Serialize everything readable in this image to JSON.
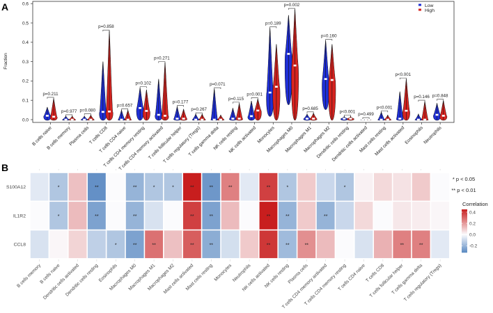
{
  "panel_a_label": "A",
  "panel_b_label": "B",
  "chart_data": [
    {
      "type": "violin",
      "ylabel": "Fraction",
      "ylim": [
        0,
        0.6
      ],
      "yticks": [
        "0.0",
        "0.1",
        "0.2",
        "0.3",
        "0.4",
        "0.5",
        "0.6"
      ],
      "legend": {
        "placement": "top-right",
        "entries": [
          {
            "name": "Low",
            "color": "#1f2fd6"
          },
          {
            "name": "High",
            "color": "#d6231f"
          }
        ]
      },
      "groups": [
        {
          "label": "B cells naive",
          "p": "p=0.211",
          "low": {
            "min": 0,
            "median": 0.02,
            "max": 0.065
          },
          "high": {
            "min": 0,
            "median": 0.015,
            "max": 0.11
          }
        },
        {
          "label": "B cells memory",
          "p": "p=0.977",
          "low": {
            "min": 0,
            "median": 0.0,
            "max": 0.02
          },
          "high": {
            "min": 0,
            "median": 0.0,
            "max": 0.02
          }
        },
        {
          "label": "Plasma cells",
          "p": "p=0.080",
          "low": {
            "min": 0,
            "median": 0.0,
            "max": 0.02
          },
          "high": {
            "min": 0,
            "median": 0.0,
            "max": 0.025
          }
        },
        {
          "label": "T cells CD8",
          "p": "p=0.858",
          "low": {
            "min": 0,
            "median": 0.04,
            "max": 0.3
          },
          "high": {
            "min": 0,
            "median": 0.042,
            "max": 0.458
          }
        },
        {
          "label": "T cells CD4 naive",
          "p": "p=0.657",
          "low": {
            "min": 0,
            "median": 0.0,
            "max": 0.05
          },
          "high": {
            "min": 0,
            "median": 0.0,
            "max": 0.05
          }
        },
        {
          "label": "T cells CD4 memory resting",
          "p": "p=0.102",
          "low": {
            "min": 0,
            "median": 0.06,
            "max": 0.165
          },
          "high": {
            "min": 0,
            "median": 0.045,
            "max": 0.155
          }
        },
        {
          "label": "T cells CD4 memory activated",
          "p": "p=0.271",
          "low": {
            "min": 0,
            "median": 0.025,
            "max": 0.21
          },
          "high": {
            "min": 0,
            "median": 0.02,
            "max": 0.295
          }
        },
        {
          "label": "T cells follicular helper",
          "p": "p=0.177",
          "low": {
            "min": 0,
            "median": 0.005,
            "max": 0.068
          },
          "high": {
            "min": 0,
            "median": 0.005,
            "max": 0.055
          }
        },
        {
          "label": "T cells regulatory (Tregs)",
          "p": "p=0.267",
          "low": {
            "min": 0,
            "median": 0.0,
            "max": 0.03
          },
          "high": {
            "min": 0,
            "median": 0.0,
            "max": 0.03
          }
        },
        {
          "label": "T cells gamma delta",
          "p": "p=0.071",
          "low": {
            "min": 0,
            "median": 0.0,
            "max": 0.16
          },
          "high": {
            "min": 0,
            "median": 0.0,
            "max": 0.025
          }
        },
        {
          "label": "NK cells resting",
          "p": "p=0.115",
          "low": {
            "min": 0,
            "median": 0.005,
            "max": 0.06
          },
          "high": {
            "min": 0,
            "median": 0.005,
            "max": 0.085
          }
        },
        {
          "label": "NK cells activated",
          "p": "p=0.001",
          "low": {
            "min": 0,
            "median": 0.018,
            "max": 0.097
          },
          "high": {
            "min": 0,
            "median": 0.047,
            "max": 0.108
          }
        },
        {
          "label": "Monocytes",
          "p": "p=0.189",
          "low": {
            "min": 0.02,
            "median": 0.14,
            "max": 0.475
          },
          "high": {
            "min": 0,
            "median": 0.17,
            "max": 0.39
          }
        },
        {
          "label": "Macrophages M0",
          "p": "p=0.002",
          "low": {
            "min": 0.08,
            "median": 0.34,
            "max": 0.54
          },
          "high": {
            "min": 0,
            "median": 0.28,
            "max": 0.57
          }
        },
        {
          "label": "Macrophages M1",
          "p": "p=0.685",
          "low": {
            "min": 0,
            "median": 0.005,
            "max": 0.03
          },
          "high": {
            "min": 0,
            "median": 0.005,
            "max": 0.035
          }
        },
        {
          "label": "Macrophages M2",
          "p": "p=0.160",
          "low": {
            "min": 0.055,
            "median": 0.21,
            "max": 0.41
          },
          "high": {
            "min": 0,
            "median": 0.205,
            "max": 0.39
          }
        },
        {
          "label": "Dendritic cells resting",
          "p": "p<0.001",
          "low": {
            "min": 0,
            "median": 0.005,
            "max": 0.018
          },
          "high": {
            "min": 0,
            "median": 0.005,
            "max": 0.018
          }
        },
        {
          "label": "Dendritic cells activated",
          "p": "p=0.499",
          "low": {
            "min": 0,
            "median": 0.0,
            "max": 0.005
          },
          "high": {
            "min": 0,
            "median": 0.0,
            "max": 0.005
          }
        },
        {
          "label": "Mast cells resting",
          "p": "p<0.001",
          "low": {
            "min": 0,
            "median": 0.0,
            "max": 0.04
          },
          "high": {
            "min": 0,
            "median": 0.0,
            "max": 0.025
          }
        },
        {
          "label": "Mast cells activated",
          "p": "p<0.001",
          "low": {
            "min": 0,
            "median": 0.005,
            "max": 0.145
          },
          "high": {
            "min": 0,
            "median": 0.046,
            "max": 0.21
          }
        },
        {
          "label": "Eosinophils",
          "p": "p=0.146",
          "low": {
            "min": 0,
            "median": 0.0,
            "max": 0.03
          },
          "high": {
            "min": 0,
            "median": 0.0,
            "max": 0.095
          }
        },
        {
          "label": "Neutrophils",
          "p": "p=0.848",
          "low": {
            "min": 0,
            "median": 0.025,
            "max": 0.085
          },
          "high": {
            "min": 0,
            "median": 0.02,
            "max": 0.1
          }
        }
      ]
    },
    {
      "type": "heatmap",
      "rows": [
        "S100A12",
        "IL1R2",
        "CCL8"
      ],
      "columns": [
        "B cells memory",
        "B cells naive",
        "Dendritic cells activated",
        "Dendritic cells resting",
        "Eosinophils",
        "Macrophages M0",
        "Macrophages M1",
        "Macrophages M2",
        "Mast cells activated",
        "Mast cells resting",
        "Monocytes",
        "Neutrophils",
        "NK cells activated",
        "NK cells resting",
        "Plasma cells",
        "T cells CD4 memory activated",
        "T cells CD4 memory resting",
        "T cells CD4 naive",
        "T cells CD8",
        "T cells follicular helper",
        "T cells gamma delta",
        "T cells regulatory (Tregs)"
      ],
      "values": [
        [
          -0.05,
          -0.15,
          0.12,
          -0.3,
          0.0,
          -0.2,
          -0.15,
          -0.15,
          0.45,
          -0.28,
          0.25,
          -0.05,
          0.38,
          -0.15,
          0.1,
          -0.1,
          -0.15,
          0.02,
          0.07,
          0.05,
          0.1,
          0.0
        ],
        [
          0.0,
          -0.15,
          0.13,
          -0.25,
          0.0,
          -0.2,
          -0.07,
          0.0,
          0.38,
          -0.25,
          0.13,
          0.0,
          0.45,
          -0.2,
          0.1,
          -0.2,
          -0.1,
          0.07,
          0.0,
          0.04,
          0.03,
          0.01
        ],
        [
          -0.07,
          0.01,
          0.08,
          -0.12,
          -0.15,
          -0.25,
          0.28,
          0.12,
          0.32,
          -0.22,
          -0.08,
          0.1,
          0.4,
          -0.18,
          0.22,
          0.13,
          0.0,
          -0.07,
          0.15,
          0.25,
          0.25,
          -0.05
        ]
      ],
      "significance": [
        [
          "",
          "*",
          "",
          "**",
          "",
          "**",
          "*",
          "*",
          "**",
          "**",
          "**",
          "",
          "**",
          "*",
          "",
          "",
          "*",
          "",
          "",
          "",
          "",
          ""
        ],
        [
          "",
          "*",
          "",
          "**",
          "",
          "**",
          "",
          "",
          "**",
          "**",
          "",
          "",
          "**",
          "**",
          "",
          "**",
          "",
          "",
          "",
          "",
          "",
          ""
        ],
        [
          "",
          "",
          "",
          "",
          "*",
          "**",
          "**",
          "",
          "**",
          "**",
          "",
          "",
          "**",
          "**",
          "**",
          "",
          "",
          "",
          "",
          "**",
          "**",
          ""
        ]
      ],
      "sig_legend": [
        "* p < 0.05",
        "** p < 0.01"
      ],
      "colorbar": {
        "title": "Correlation",
        "ticks": [
          "0.4",
          "0.2",
          "0.0",
          "-0.2"
        ],
        "tick_values": [
          0.4,
          0.2,
          0.0,
          -0.2
        ],
        "range": [
          -0.32,
          0.45
        ],
        "low_color": "#5a89c2",
        "mid_color": "#fbfbfd",
        "high_color": "#c81e1e"
      }
    }
  ]
}
